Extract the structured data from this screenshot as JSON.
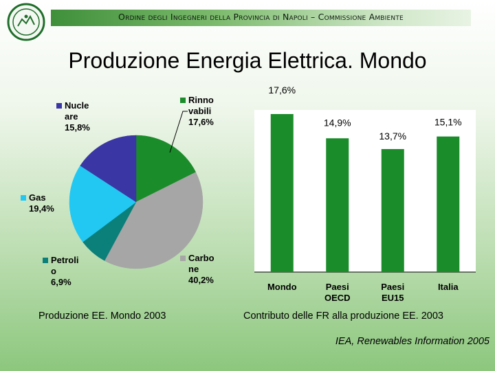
{
  "header": {
    "text": "Ordine degli Ingegneri della Provincia di Napoli – Commissione Ambiente"
  },
  "title": "Produzione Energia Elettrica. Mondo",
  "chart_data": [
    {
      "type": "pie",
      "caption": "Produzione EE. Mondo 2003",
      "slices": [
        {
          "name": "Rinno vabili",
          "label_lines": [
            "Rinno",
            "vabili"
          ],
          "value": 17.6,
          "value_label": "17,6%",
          "color": "#1a8c2a"
        },
        {
          "name": "Carbo ne",
          "label_lines": [
            "Carbo",
            "ne"
          ],
          "value": 40.2,
          "value_label": "40,2%",
          "color": "#a6a6a6"
        },
        {
          "name": "Petroli o",
          "label_lines": [
            "Petroli",
            "o"
          ],
          "value": 6.9,
          "value_label": "6,9%",
          "color": "#0b7f7a"
        },
        {
          "name": "Gas",
          "label_lines": [
            "Gas"
          ],
          "value": 19.4,
          "value_label": "19,4%",
          "color": "#22c8f2"
        },
        {
          "name": "Nucle are",
          "label_lines": [
            "Nucle",
            "are"
          ],
          "value": 15.8,
          "value_label": "15,8%",
          "color": "#3a36a3"
        }
      ]
    },
    {
      "type": "bar",
      "caption": "Contributo delle FR alla produzione EE. 2003",
      "categories": [
        "Mondo",
        "Paesi OECD",
        "Paesi EU15",
        "Italia"
      ],
      "category_lines": [
        [
          "Mondo"
        ],
        [
          "Paesi",
          "OECD"
        ],
        [
          "Paesi",
          "EU15"
        ],
        [
          "Italia"
        ]
      ],
      "values": [
        17.6,
        14.9,
        13.7,
        15.1
      ],
      "value_labels": [
        "17,6%",
        "14,9%",
        "13,7%",
        "15,1%"
      ],
      "ylim": [
        0,
        17.6
      ],
      "color": "#1a8c2a"
    }
  ],
  "source": "IEA, Renewables Information 2005"
}
